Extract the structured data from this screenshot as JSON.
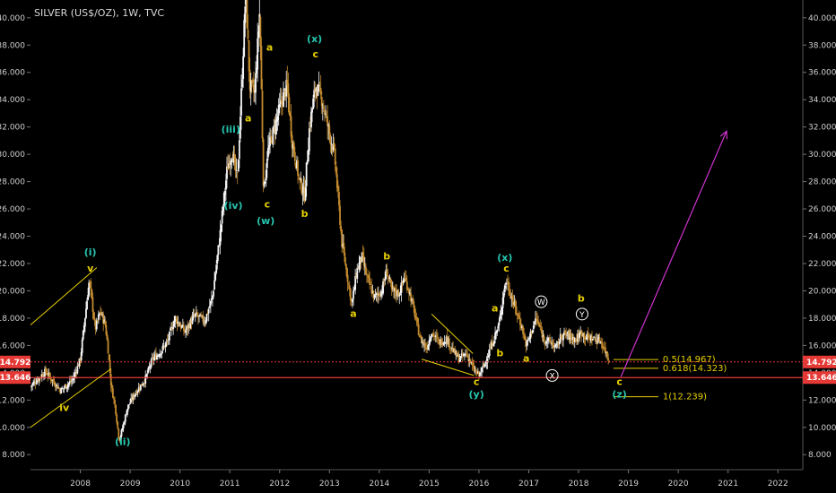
{
  "chart_data": {
    "type": "candlestick",
    "title": "SILVER (US$/OZ), 1W, TVC",
    "xlabel": "",
    "ylabel": "",
    "x_range": [
      2007.0,
      2022.5
    ],
    "y_range": [
      6.9,
      41.3
    ],
    "x_ticks": [
      "2008",
      "2009",
      "2010",
      "2011",
      "2012",
      "2013",
      "2014",
      "2015",
      "2016",
      "2017",
      "2018",
      "2019",
      "2020",
      "2021",
      "2022"
    ],
    "y_ticks": [
      "8.000",
      "10.000",
      "12.000",
      "14.000",
      "16.000",
      "18.000",
      "20.000",
      "22.000",
      "24.000",
      "26.000",
      "28.000",
      "30.000",
      "32.000",
      "34.000",
      "36.000",
      "38.000",
      "40.000"
    ],
    "price_path": [
      [
        2007.0,
        13.0
      ],
      [
        2007.3,
        14.1
      ],
      [
        2007.6,
        12.7
      ],
      [
        2007.85,
        13.5
      ],
      [
        2008.0,
        15.0
      ],
      [
        2008.18,
        20.8
      ],
      [
        2008.3,
        17.2
      ],
      [
        2008.4,
        18.5
      ],
      [
        2008.5,
        17.5
      ],
      [
        2008.55,
        16.0
      ],
      [
        2008.62,
        13.0
      ],
      [
        2008.7,
        11.5
      ],
      [
        2008.78,
        9.0
      ],
      [
        2008.85,
        10.0
      ],
      [
        2008.95,
        11.5
      ],
      [
        2009.1,
        12.5
      ],
      [
        2009.3,
        13.5
      ],
      [
        2009.45,
        15.0
      ],
      [
        2009.6,
        15.5
      ],
      [
        2009.75,
        16.3
      ],
      [
        2009.9,
        18.0
      ],
      [
        2010.1,
        17.0
      ],
      [
        2010.3,
        18.2
      ],
      [
        2010.5,
        17.8
      ],
      [
        2010.65,
        19.5
      ],
      [
        2010.8,
        24.0
      ],
      [
        2010.95,
        29.0
      ],
      [
        2011.05,
        30.2
      ],
      [
        2011.15,
        28.0
      ],
      [
        2011.25,
        36.0
      ],
      [
        2011.32,
        42.0
      ],
      [
        2011.4,
        35.0
      ],
      [
        2011.5,
        34.5
      ],
      [
        2011.6,
        40.5
      ],
      [
        2011.68,
        27.0
      ],
      [
        2011.75,
        30.0
      ],
      [
        2011.9,
        32.0
      ],
      [
        2012.05,
        34.0
      ],
      [
        2012.15,
        35.0
      ],
      [
        2012.25,
        31.0
      ],
      [
        2012.4,
        28.0
      ],
      [
        2012.5,
        27.0
      ],
      [
        2012.6,
        32.0
      ],
      [
        2012.72,
        35.0
      ],
      [
        2012.85,
        34.0
      ],
      [
        2013.0,
        31.5
      ],
      [
        2013.1,
        30.0
      ],
      [
        2013.25,
        23.5
      ],
      [
        2013.45,
        19.0
      ],
      [
        2013.55,
        21.5
      ],
      [
        2013.65,
        22.5
      ],
      [
        2013.75,
        21.0
      ],
      [
        2013.9,
        19.5
      ],
      [
        2014.05,
        20.0
      ],
      [
        2014.15,
        21.5
      ],
      [
        2014.25,
        20.0
      ],
      [
        2014.4,
        19.8
      ],
      [
        2014.5,
        21.0
      ],
      [
        2014.6,
        20.0
      ],
      [
        2014.7,
        18.5
      ],
      [
        2014.82,
        16.5
      ],
      [
        2014.95,
        15.8
      ],
      [
        2015.05,
        17.0
      ],
      [
        2015.2,
        16.2
      ],
      [
        2015.35,
        16.5
      ],
      [
        2015.5,
        15.5
      ],
      [
        2015.6,
        15.0
      ],
      [
        2015.75,
        15.4
      ],
      [
        2015.9,
        14.2
      ],
      [
        2016.0,
        13.8
      ],
      [
        2016.1,
        14.5
      ],
      [
        2016.2,
        15.5
      ],
      [
        2016.3,
        16.5
      ],
      [
        2016.4,
        17.5
      ],
      [
        2016.5,
        20.0
      ],
      [
        2016.55,
        20.8
      ],
      [
        2016.7,
        19.0
      ],
      [
        2016.85,
        17.5
      ],
      [
        2016.95,
        16.0
      ],
      [
        2017.05,
        17.0
      ],
      [
        2017.15,
        18.0
      ],
      [
        2017.3,
        16.5
      ],
      [
        2017.45,
        16.2
      ],
      [
        2017.55,
        15.8
      ],
      [
        2017.65,
        16.7
      ],
      [
        2017.75,
        16.8
      ],
      [
        2017.85,
        16.6
      ],
      [
        2017.95,
        16.4
      ],
      [
        2018.05,
        17.0
      ],
      [
        2018.15,
        16.6
      ],
      [
        2018.3,
        16.5
      ],
      [
        2018.45,
        16.3
      ],
      [
        2018.55,
        15.5
      ],
      [
        2018.62,
        14.8
      ]
    ],
    "horizontal_lines": [
      {
        "price": 14.792,
        "label": "14.792",
        "color": "#e53935",
        "style": "dotted"
      },
      {
        "price": 13.646,
        "label": "13.646",
        "color": "#e53935",
        "style": "solid"
      }
    ],
    "fib_levels": [
      {
        "price": 14.967,
        "label": "0.5(14.967)",
        "color": "#e8d000"
      },
      {
        "price": 14.323,
        "label": "0.618(14.323)",
        "color": "#e8d000"
      },
      {
        "price": 12.239,
        "label": "1(12.239)",
        "color": "#e8d000"
      }
    ],
    "fib_x_range": [
      2018.7,
      2019.6
    ],
    "trend_lines": [
      {
        "from": [
          2007.0,
          17.5
        ],
        "to": [
          2008.33,
          21.7
        ],
        "color": "#e8d000"
      },
      {
        "from": [
          2007.0,
          10.0
        ],
        "to": [
          2008.62,
          14.3
        ],
        "color": "#e8d000"
      },
      {
        "from": [
          2015.05,
          18.3
        ],
        "to": [
          2015.88,
          15.4
        ],
        "color": "#e8d000"
      },
      {
        "from": [
          2014.85,
          15.0
        ],
        "to": [
          2015.9,
          13.8
        ],
        "color": "#e8d000"
      }
    ],
    "projection_arrow": {
      "from": [
        2018.85,
        13.7
      ],
      "to": [
        2020.97,
        31.7
      ],
      "color": "#cc33cc"
    },
    "wave_labels": [
      {
        "text": "(i)",
        "x": 2008.2,
        "y": 22.6,
        "color": "#26c6b0"
      },
      {
        "text": "v",
        "x": 2008.2,
        "y": 21.4,
        "color": "#e8d000"
      },
      {
        "text": "iv",
        "x": 2007.68,
        "y": 11.2,
        "color": "#e8d000"
      },
      {
        "text": "(ii)",
        "x": 2008.85,
        "y": 8.7,
        "color": "#26c6b0"
      },
      {
        "text": "(iii)",
        "x": 2011.02,
        "y": 31.6,
        "color": "#26c6b0"
      },
      {
        "text": "(iv)",
        "x": 2011.07,
        "y": 26.0,
        "color": "#26c6b0"
      },
      {
        "text": "a",
        "x": 2011.37,
        "y": 32.4,
        "color": "#e8d000"
      },
      {
        "text": "a",
        "x": 2011.8,
        "y": 37.6,
        "color": "#e8d000"
      },
      {
        "text": "c",
        "x": 2011.75,
        "y": 26.1,
        "color": "#e8d000"
      },
      {
        "text": "(w)",
        "x": 2011.72,
        "y": 24.9,
        "color": "#26c6b0"
      },
      {
        "text": "b",
        "x": 2012.5,
        "y": 25.4,
        "color": "#e8d000"
      },
      {
        "text": "(x)",
        "x": 2012.7,
        "y": 38.2,
        "color": "#26c6b0"
      },
      {
        "text": "c",
        "x": 2012.72,
        "y": 37.1,
        "color": "#e8d000"
      },
      {
        "text": "a",
        "x": 2013.48,
        "y": 18.1,
        "color": "#e8d000"
      },
      {
        "text": "b",
        "x": 2014.15,
        "y": 22.3,
        "color": "#e8d000"
      },
      {
        "text": "c",
        "x": 2015.95,
        "y": 13.1,
        "color": "#e8d000"
      },
      {
        "text": "(y)",
        "x": 2015.95,
        "y": 12.2,
        "color": "#26c6b0"
      },
      {
        "text": "a",
        "x": 2016.32,
        "y": 18.5,
        "color": "#e8d000"
      },
      {
        "text": "b",
        "x": 2016.42,
        "y": 15.2,
        "color": "#e8d000"
      },
      {
        "text": "(x)",
        "x": 2016.52,
        "y": 22.2,
        "color": "#26c6b0"
      },
      {
        "text": "c",
        "x": 2016.55,
        "y": 21.4,
        "color": "#e8d000"
      },
      {
        "text": "a",
        "x": 2016.95,
        "y": 14.8,
        "color": "#e8d000"
      },
      {
        "text": "b",
        "x": 2018.05,
        "y": 19.2,
        "color": "#e8d000"
      },
      {
        "text": "c",
        "x": 2018.82,
        "y": 13.1,
        "color": "#e8d000"
      },
      {
        "text": "(z)",
        "x": 2018.82,
        "y": 12.2,
        "color": "#26c6b0"
      }
    ],
    "circled_labels": [
      {
        "text": "W",
        "x": 2017.25,
        "y": 19.2
      },
      {
        "text": "Y",
        "x": 2018.07,
        "y": 18.3
      },
      {
        "text": "X",
        "x": 2017.47,
        "y": 13.8
      }
    ],
    "colors": {
      "background": "#000000",
      "up": "#f5f5f5",
      "down": "#c28a2e",
      "axis_text": "#d0d0d0"
    }
  }
}
